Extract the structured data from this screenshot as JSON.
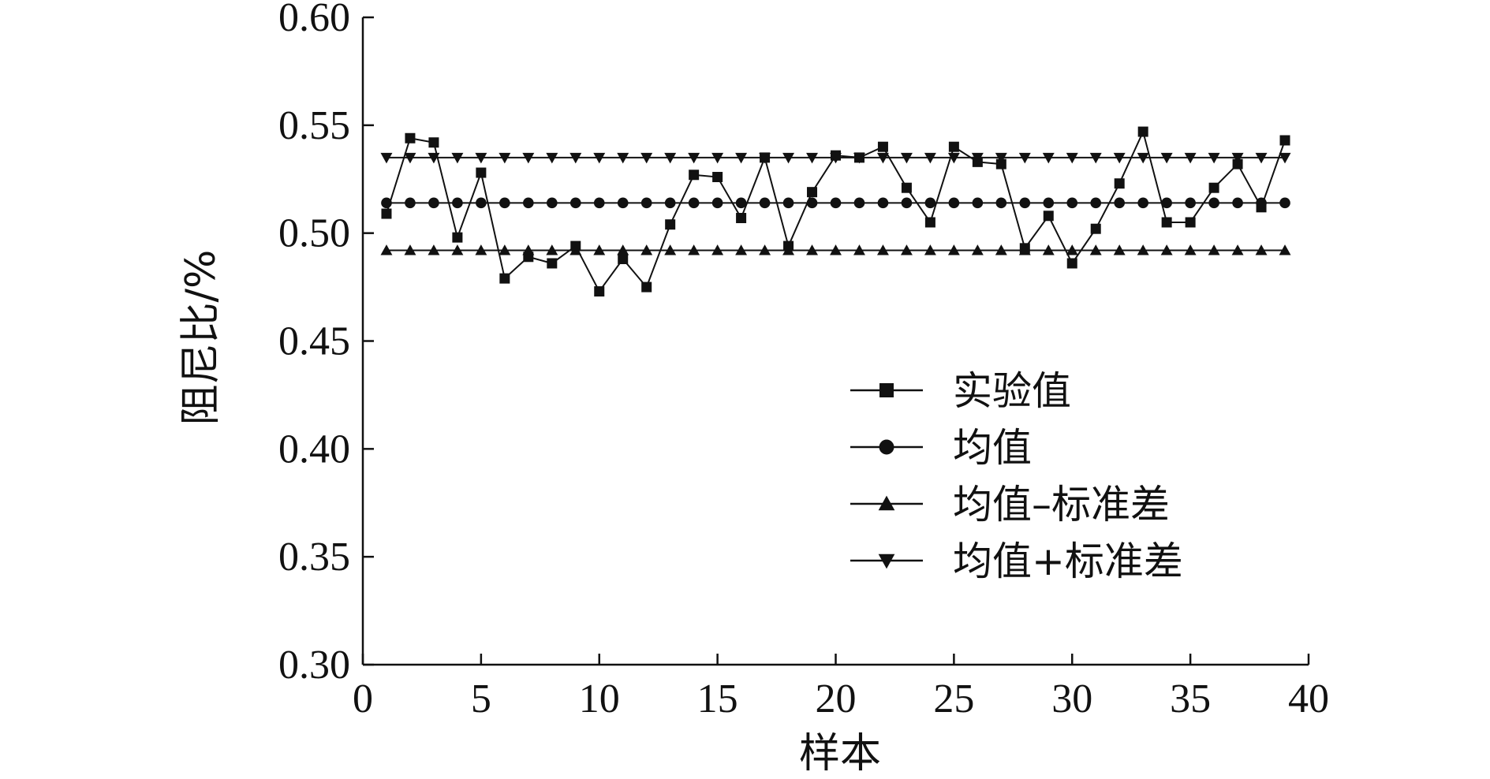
{
  "chart_data": {
    "type": "line",
    "title": "",
    "xlabel": "样本",
    "ylabel": "阻尼比/%",
    "xlim": [
      0,
      40
    ],
    "ylim": [
      0.3,
      0.6
    ],
    "xticks": [
      0,
      5,
      10,
      15,
      20,
      25,
      30,
      35,
      40
    ],
    "xtick_labels": [
      "0",
      "5",
      "10",
      "15",
      "20",
      "25",
      "30",
      "35",
      "40"
    ],
    "yticks": [
      0.3,
      0.35,
      0.4,
      0.45,
      0.5,
      0.55,
      0.6
    ],
    "ytick_labels": [
      "0.30",
      "0.35",
      "0.40",
      "0.45",
      "0.50",
      "0.55",
      "0.60"
    ],
    "grid": false,
    "legend_position": "bottom-right",
    "x": [
      1,
      2,
      3,
      4,
      5,
      6,
      7,
      8,
      9,
      10,
      11,
      12,
      13,
      14,
      15,
      16,
      17,
      18,
      19,
      20,
      21,
      22,
      23,
      24,
      25,
      26,
      27,
      28,
      29,
      30,
      31,
      32,
      33,
      34,
      35,
      36,
      37,
      38,
      39
    ],
    "series": [
      {
        "name": "实验值",
        "marker": "square",
        "values": [
          0.509,
          0.544,
          0.542,
          0.498,
          0.528,
          0.479,
          0.489,
          0.486,
          0.494,
          0.473,
          0.488,
          0.475,
          0.504,
          0.527,
          0.526,
          0.507,
          0.535,
          0.494,
          0.519,
          0.536,
          0.535,
          0.54,
          0.521,
          0.505,
          0.54,
          0.533,
          0.532,
          0.493,
          0.508,
          0.486,
          0.502,
          0.523,
          0.547,
          0.505,
          0.505,
          0.521,
          0.532,
          0.512,
          0.543
        ]
      },
      {
        "name": "均值",
        "marker": "circle",
        "values": [
          0.514,
          0.514,
          0.514,
          0.514,
          0.514,
          0.514,
          0.514,
          0.514,
          0.514,
          0.514,
          0.514,
          0.514,
          0.514,
          0.514,
          0.514,
          0.514,
          0.514,
          0.514,
          0.514,
          0.514,
          0.514,
          0.514,
          0.514,
          0.514,
          0.514,
          0.514,
          0.514,
          0.514,
          0.514,
          0.514,
          0.514,
          0.514,
          0.514,
          0.514,
          0.514,
          0.514,
          0.514,
          0.514,
          0.514
        ]
      },
      {
        "name": "均值–标准差",
        "marker": "triangle-up",
        "values": [
          0.492,
          0.492,
          0.492,
          0.492,
          0.492,
          0.492,
          0.492,
          0.492,
          0.492,
          0.492,
          0.492,
          0.492,
          0.492,
          0.492,
          0.492,
          0.492,
          0.492,
          0.492,
          0.492,
          0.492,
          0.492,
          0.492,
          0.492,
          0.492,
          0.492,
          0.492,
          0.492,
          0.492,
          0.492,
          0.492,
          0.492,
          0.492,
          0.492,
          0.492,
          0.492,
          0.492,
          0.492,
          0.492,
          0.492
        ]
      },
      {
        "name": "均值+标准差",
        "marker": "triangle-down",
        "values": [
          0.535,
          0.535,
          0.535,
          0.535,
          0.535,
          0.535,
          0.535,
          0.535,
          0.535,
          0.535,
          0.535,
          0.535,
          0.535,
          0.535,
          0.535,
          0.535,
          0.535,
          0.535,
          0.535,
          0.535,
          0.535,
          0.535,
          0.535,
          0.535,
          0.535,
          0.535,
          0.535,
          0.535,
          0.535,
          0.535,
          0.535,
          0.535,
          0.535,
          0.535,
          0.535,
          0.535,
          0.535,
          0.535,
          0.535
        ]
      }
    ],
    "colors": {
      "line": "#111111",
      "background": "#ffffff"
    }
  }
}
